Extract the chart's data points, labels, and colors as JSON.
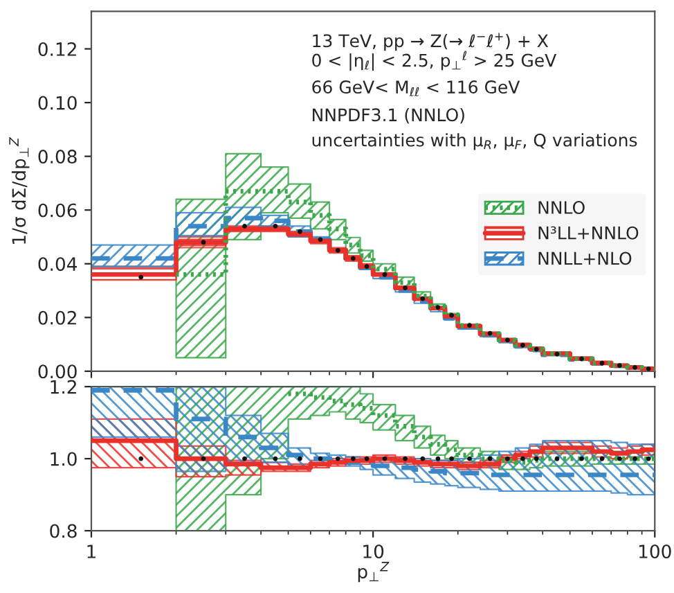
{
  "chart_data": [
    {
      "type": "step",
      "ylabel": "1/σ dΣ/dp$_{⊥}$$^{Z}$",
      "log": "x",
      "xlim": [
        1,
        100
      ],
      "xticks": [
        1,
        10,
        100
      ],
      "tick_labels": "y",
      "legend": "center right",
      "ylim": [
        0,
        0.134
      ],
      "yticks": [
        {
          "value": 0,
          "label": "0.00"
        },
        {
          "value": 0.02,
          "label": "0.02"
        },
        {
          "value": 0.04,
          "label": "0.04"
        },
        {
          "value": 0.06,
          "label": "0.06"
        },
        {
          "value": 0.08,
          "label": "0.08"
        },
        {
          "value": 0.1,
          "label": "0.10"
        },
        {
          "value": 0.12,
          "label": "0.12"
        }
      ],
      "annotations": [
        "13 TeV, pp → Z(→ ℓ$^{−}$ℓ$^{+}$) + X",
        "0 < |η$_{ℓ}$| < 2.5, p$_{⊥}$$^{ℓ}$ > 25 GeV",
        "66 GeV< M$_{ℓℓ}$ < 116 GeV",
        "NNPDF3.1 (NNLO)",
        "uncertainties with μ$_{R}$, μ$_{F}$, Q variations"
      ],
      "x": [
        1,
        2,
        3,
        4,
        5,
        6,
        7,
        8,
        9,
        10,
        12,
        14,
        16,
        18,
        20,
        24,
        28,
        32,
        36,
        40,
        50,
        60,
        70,
        80,
        90,
        100
      ],
      "series": [
        {
          "name": "NNLO",
          "color": "#3aa84a",
          "line_style": "dotted",
          "values": [
            null,
            0.036,
            0.067,
            0.067,
            0.063,
            0.058,
            0.053,
            0.047,
            0.043,
            0.038,
            0.033,
            0.028,
            0.024,
            0.021,
            0.017,
            0.014,
            0.0116,
            0.0097,
            0.0082,
            0.0065,
            0.0046,
            0.003,
            0.0021,
            0.0014,
            0.0009,
            0.0009
          ],
          "lower": [
            null,
            0.005,
            0.049,
            0.059,
            0.057,
            0.053,
            0.049,
            0.044,
            0.041,
            0.036,
            0.0315,
            0.027,
            0.0235,
            0.0205,
            0.0167,
            0.0138,
            0.0113,
            0.0095,
            0.008,
            0.0063,
            0.0045,
            0.0029,
            0.002,
            0.0013,
            0.0008,
            0.0008
          ],
          "upper": [
            null,
            0.064,
            0.081,
            0.076,
            0.0697,
            0.063,
            0.0565,
            0.0498,
            0.045,
            0.04,
            0.035,
            0.0295,
            0.025,
            0.0215,
            0.0175,
            0.0143,
            0.0118,
            0.0099,
            0.0084,
            0.0067,
            0.0048,
            0.0031,
            0.0022,
            0.0015,
            0.001,
            0.001
          ]
        },
        {
          "name": "N³LL+NNLO",
          "color": "#e8312a",
          "line_style": "solid",
          "values": [
            0.036,
            0.048,
            0.053,
            0.053,
            0.051,
            0.0485,
            0.045,
            0.042,
            0.039,
            0.036,
            0.031,
            0.027,
            0.0235,
            0.0205,
            0.0168,
            0.0139,
            0.0116,
            0.0098,
            0.0084,
            0.0066,
            0.0047,
            0.0031,
            0.0021,
            0.0014,
            0.0009,
            0.0009
          ],
          "lower": [
            0.034,
            0.046,
            0.052,
            0.052,
            0.05,
            0.0475,
            0.044,
            0.041,
            0.038,
            0.0355,
            0.0305,
            0.0265,
            0.023,
            0.02,
            0.0164,
            0.0136,
            0.0114,
            0.0096,
            0.0082,
            0.0064,
            0.0046,
            0.003,
            0.002,
            0.0013,
            0.0008,
            0.0008
          ],
          "upper": [
            0.039,
            0.05,
            0.054,
            0.054,
            0.052,
            0.0495,
            0.046,
            0.043,
            0.04,
            0.0365,
            0.0315,
            0.0275,
            0.024,
            0.021,
            0.0172,
            0.0142,
            0.0118,
            0.01,
            0.0086,
            0.0068,
            0.0048,
            0.0032,
            0.0022,
            0.0015,
            0.001,
            0.001
          ]
        },
        {
          "name": "NNLL+NLO",
          "color": "#3a87c8",
          "line_style": "dashed",
          "values": [
            0.042,
            0.054,
            0.057,
            0.056,
            0.052,
            0.049,
            0.045,
            0.042,
            0.0385,
            0.035,
            0.03,
            0.026,
            0.0227,
            0.0197,
            0.0163,
            0.0134,
            0.0111,
            0.0093,
            0.0079,
            0.0061,
            0.0044,
            0.0029,
            0.002,
            0.0013,
            0.0009,
            0.0009
          ],
          "lower": [
            0.039,
            0.0505,
            0.053,
            0.054,
            0.05,
            0.048,
            0.0445,
            0.0415,
            0.038,
            0.0345,
            0.0295,
            0.0253,
            0.0222,
            0.0192,
            0.0157,
            0.0129,
            0.0106,
            0.0088,
            0.0075,
            0.0058,
            0.0042,
            0.0027,
            0.0019,
            0.0012,
            0.0008,
            0.0008
          ],
          "upper": [
            0.047,
            0.059,
            0.061,
            0.058,
            0.054,
            0.05,
            0.0455,
            0.0425,
            0.039,
            0.036,
            0.031,
            0.027,
            0.0237,
            0.0207,
            0.0171,
            0.0142,
            0.0118,
            0.01,
            0.0085,
            0.0067,
            0.0048,
            0.0032,
            0.0022,
            0.0015,
            0.001,
            0.001
          ]
        },
        {
          "type": "scatter",
          "color": "#111111",
          "marker": "circle",
          "x": [
            1.5,
            2.5,
            3.5,
            4.5,
            5.5,
            6.5,
            7.5,
            8.5,
            9.5,
            11,
            13,
            15,
            17,
            19,
            22,
            26,
            30,
            34,
            38,
            45,
            55,
            65,
            75,
            85,
            95
          ],
          "values": [
            0.035,
            0.048,
            0.054,
            0.054,
            0.052,
            0.049,
            0.045,
            0.042,
            0.039,
            0.036,
            0.031,
            0.027,
            0.0238,
            0.0208,
            0.0171,
            0.0141,
            0.0116,
            0.0097,
            0.0082,
            0.0064,
            0.0046,
            0.003,
            0.0021,
            0.0014,
            0.0009
          ]
        }
      ]
    },
    {
      "type": "step",
      "xlabel": "p$_{⊥}$$^{Z}$",
      "log": "x",
      "xlim": [
        1,
        100
      ],
      "xticks": [
        1,
        10,
        100
      ],
      "ylim": [
        0.8,
        1.2
      ],
      "yticks": [
        0.8,
        {
          "value": 1,
          "label": "1.0"
        },
        1.2
      ],
      "x": [
        1,
        2,
        3,
        4,
        5,
        6,
        7,
        8,
        9,
        10,
        12,
        14,
        16,
        18,
        20,
        24,
        28,
        32,
        36,
        40,
        50,
        60,
        70,
        80,
        90,
        100
      ],
      "series": [
        {
          "color": "#3aa84a",
          "line_style": "dotted",
          "values": [
            null,
            null,
            null,
            null,
            1.18,
            1.17,
            1.16,
            1.15,
            1.14,
            1.12,
            1.09,
            1.06,
            1.04,
            1.025,
            1.01,
            1.0,
            0.995,
            0.99,
            0.995,
            1.0,
            1.0,
            1.0,
            1.0,
            1.0,
            1.0,
            1.0
          ],
          "lower": [
            null,
            0.8,
            0.9,
            1.0,
            1.11,
            1.12,
            1.13,
            1.11,
            1.1,
            1.08,
            1.05,
            1.03,
            1.01,
            1.0,
            0.99,
            0.98,
            0.97,
            0.97,
            0.975,
            0.98,
            0.98,
            0.985,
            0.985,
            0.985,
            0.985,
            0.985
          ],
          "upper": [
            null,
            1.2,
            1.2,
            1.2,
            1.2,
            1.2,
            1.2,
            1.2,
            1.18,
            1.15,
            1.12,
            1.09,
            1.065,
            1.05,
            1.03,
            1.02,
            1.01,
            1.01,
            1.015,
            1.02,
            1.02,
            1.02,
            1.02,
            1.02,
            1.02,
            1.02
          ]
        },
        {
          "color": "#e8312a",
          "line_style": "solid",
          "values": [
            1.05,
            1.0,
            0.985,
            0.975,
            0.975,
            0.985,
            0.99,
            0.995,
            0.995,
            1.0,
            0.995,
            0.99,
            0.985,
            0.985,
            0.98,
            0.985,
            1.0,
            1.01,
            1.02,
            1.03,
            1.03,
            1.02,
            1.015,
            1.02,
            1.025,
            1.025
          ],
          "lower": [
            0.975,
            0.95,
            0.955,
            0.965,
            0.965,
            0.975,
            0.98,
            0.985,
            0.985,
            0.99,
            0.985,
            0.98,
            0.975,
            0.975,
            0.97,
            0.975,
            0.99,
            1.0,
            1.005,
            1.015,
            1.015,
            1.005,
            1.0,
            1.005,
            1.01,
            1.01
          ],
          "upper": [
            1.11,
            1.035,
            0.995,
            0.99,
            0.985,
            0.995,
            1.0,
            1.005,
            1.005,
            1.01,
            1.005,
            1.0,
            0.995,
            0.995,
            0.99,
            0.995,
            1.01,
            1.02,
            1.035,
            1.045,
            1.045,
            1.035,
            1.03,
            1.035,
            1.04,
            1.04
          ]
        },
        {
          "color": "#3a87c8",
          "line_style": "dashed",
          "values": [
            1.19,
            1.11,
            1.06,
            1.03,
            1.01,
            1.0,
            1.0,
            0.99,
            0.985,
            0.98,
            0.975,
            0.97,
            0.965,
            0.96,
            0.96,
            0.955,
            0.955,
            0.955,
            0.955,
            0.955,
            0.955,
            0.955,
            0.955,
            0.955,
            0.955,
            0.955
          ],
          "lower": [
            1.06,
            0.965,
            0.99,
            0.99,
            0.98,
            0.985,
            0.99,
            0.98,
            0.97,
            0.955,
            0.945,
            0.935,
            0.93,
            0.925,
            0.92,
            0.915,
            0.91,
            0.91,
            0.91,
            0.91,
            0.91,
            0.91,
            0.905,
            0.9,
            0.9,
            0.9
          ],
          "upper": [
            1.2,
            1.2,
            1.12,
            1.07,
            1.03,
            1.015,
            1.01,
            1.005,
            1.0,
            1.0,
            1.0,
            1.0,
            0.995,
            0.995,
            1.0,
            1.01,
            1.02,
            1.03,
            1.04,
            1.05,
            1.05,
            1.05,
            1.045,
            1.04,
            1.04,
            1.04
          ]
        },
        {
          "type": "scatter",
          "color": "#111111",
          "marker": "circle",
          "x": [
            1.5,
            2.5,
            3.5,
            4.5,
            5.5,
            6.5,
            7.5,
            8.5,
            9.5,
            11,
            13,
            15,
            17,
            19,
            22,
            26,
            30,
            34,
            38,
            45,
            55,
            65,
            75,
            85,
            95
          ],
          "values": [
            1,
            1,
            1,
            1,
            1,
            1,
            1,
            1,
            1,
            1,
            1,
            1,
            1,
            1,
            1,
            1,
            1,
            1,
            1,
            1,
            1,
            1,
            1,
            1,
            1
          ]
        }
      ]
    }
  ]
}
